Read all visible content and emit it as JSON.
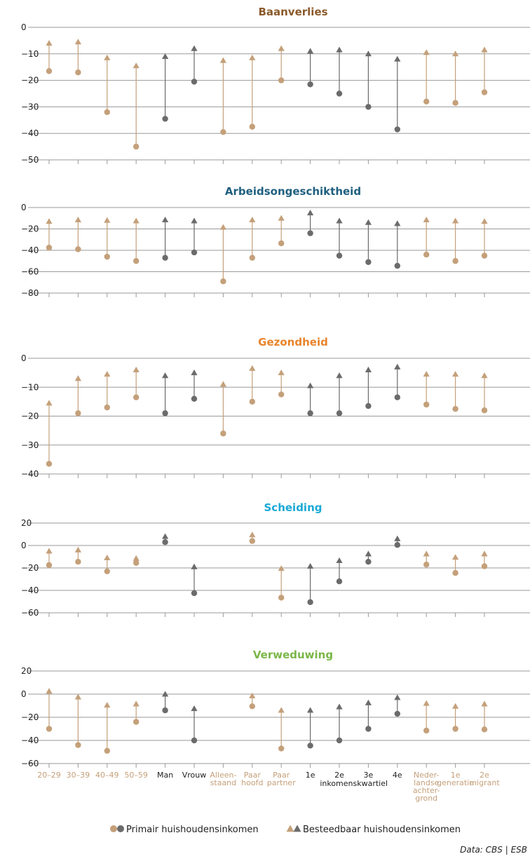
{
  "chart_data": {
    "type": "scatter",
    "categories": [
      {
        "label": [
          "20–29"
        ],
        "group": "age"
      },
      {
        "label": [
          "30–39"
        ],
        "group": "age"
      },
      {
        "label": [
          "40–49"
        ],
        "group": "age"
      },
      {
        "label": [
          "50–59"
        ],
        "group": "age"
      },
      {
        "label": [
          "Man"
        ],
        "group": "gender"
      },
      {
        "label": [
          "Vrouw"
        ],
        "group": "gender"
      },
      {
        "label": [
          "Alleen-",
          "staand"
        ],
        "group": "household"
      },
      {
        "label": [
          "Paar",
          "hoofd"
        ],
        "group": "household"
      },
      {
        "label": [
          "Paar",
          "partner"
        ],
        "group": "household"
      },
      {
        "label": [
          "1e"
        ],
        "group": "quartile"
      },
      {
        "label": [
          "2e"
        ],
        "group": "quartile"
      },
      {
        "label": [
          "3e"
        ],
        "group": "quartile"
      },
      {
        "label": [
          "4e"
        ],
        "group": "quartile"
      },
      {
        "label": [
          "Neder-",
          "landse",
          "achter-",
          "grond"
        ],
        "group": "origin"
      },
      {
        "label": [
          "1e",
          "generatie"
        ],
        "group": "origin"
      },
      {
        "label": [
          "2e",
          "migrant"
        ],
        "group": "origin"
      }
    ],
    "group_label": {
      "text": "inkomenskwartiel",
      "group": "quartile"
    },
    "group_colors": {
      "age": "#c4a07a",
      "gender": "#6b6b6b",
      "household": "#c4a07a",
      "quartile": "#6b6b6b",
      "origin": "#c4a07a"
    },
    "label_colors": {
      "age": "#c4a07a",
      "gender": "#222222",
      "household": "#c4a07a",
      "quartile": "#222222",
      "origin": "#c4a07a"
    },
    "panels": [
      {
        "title": "Baanverlies",
        "title_color": "#8b5a2b",
        "ylim": [
          -50,
          0
        ],
        "yticks": [
          0,
          -10,
          -20,
          -30,
          -40,
          -50
        ],
        "series": [
          {
            "name": "Primair huishoudensinkomen",
            "marker": "circle",
            "values": [
              -16.5,
              -17,
              -32,
              -45,
              -34.5,
              -20.5,
              -39.5,
              -37.5,
              -20,
              -21.5,
              -25,
              -30,
              -38.5,
              -28,
              -28.5,
              -24.5
            ]
          },
          {
            "name": "Besteedbaar huishoudensinkomen",
            "marker": "triangle",
            "values": [
              -6,
              -5.5,
              -11.5,
              -14.5,
              -11,
              -8,
              -12.5,
              -11.5,
              -8,
              -9,
              -8.5,
              -10,
              -12,
              -9.5,
              -10,
              -8.5
            ]
          }
        ]
      },
      {
        "title": "Arbeidsongeschiktheid",
        "title_color": "#1f5f7f",
        "ylim": [
          -80,
          0
        ],
        "yticks": [
          0,
          -20,
          -40,
          -60,
          -80
        ],
        "series": [
          {
            "name": "Primair huishoudensinkomen",
            "marker": "circle",
            "values": [
              -37.5,
              -39,
              -46,
              -50,
              -47,
              -42,
              -69,
              -47,
              -33.5,
              -24,
              -45,
              -51,
              -54.5,
              -44,
              -50,
              -45
            ]
          },
          {
            "name": "Besteedbaar huishoudensinkomen",
            "marker": "triangle",
            "values": [
              -13,
              -11.5,
              -12,
              -12.5,
              -11.5,
              -12.5,
              -18.5,
              -11.5,
              -10,
              -5,
              -12.5,
              -14,
              -15,
              -11.5,
              -12.5,
              -13
            ]
          }
        ]
      },
      {
        "title": "Gezondheid",
        "title_color": "#e8842c",
        "ylim": [
          -40,
          0
        ],
        "yticks": [
          0,
          -10,
          -20,
          -30,
          -40
        ],
        "series": [
          {
            "name": "Primair huishoudensinkomen",
            "marker": "circle",
            "values": [
              -36.5,
              -19,
              -17,
              -13.5,
              -19,
              -14,
              -26,
              -15,
              -12.5,
              -19,
              -19,
              -16.5,
              -13.5,
              -16,
              -17.5,
              -18
            ]
          },
          {
            "name": "Besteedbaar huishoudensinkomen",
            "marker": "triangle",
            "values": [
              -15.5,
              -7,
              -5.5,
              -4,
              -6,
              -5,
              -9,
              -3.5,
              -5,
              -9.5,
              -6,
              -4,
              -3,
              -5.5,
              -5.5,
              -6
            ]
          }
        ]
      },
      {
        "title": "Scheiding",
        "title_color": "#1ba9d6",
        "ylim": [
          -60,
          20
        ],
        "yticks": [
          20,
          0,
          -20,
          -40,
          -60
        ],
        "series": [
          {
            "name": "Primair huishoudensinkomen",
            "marker": "circle",
            "values": [
              -17.5,
              -14.5,
              -23,
              -15.5,
              3,
              -42.5,
              null,
              4,
              -46.5,
              -50.5,
              -32,
              -14.5,
              0.5,
              -17,
              -24.5,
              -18.5
            ]
          },
          {
            "name": "Besteedbaar huishoudensinkomen",
            "marker": "triangle",
            "values": [
              -5,
              -4,
              -11,
              -11.5,
              8,
              -19,
              null,
              9.5,
              -20.5,
              -18.5,
              -13.5,
              -7.5,
              6,
              -7.5,
              -10.5,
              -7.5
            ]
          }
        ]
      },
      {
        "title": "Verweduwing",
        "title_color": "#7ab648",
        "ylim": [
          -60,
          20
        ],
        "yticks": [
          20,
          0,
          -20,
          -40,
          -60
        ],
        "series": [
          {
            "name": "Primair huishoudensinkomen",
            "marker": "circle",
            "values": [
              -30,
              -44,
              -49,
              -24,
              -14,
              -40,
              null,
              -10.5,
              -47,
              -44.5,
              -40,
              -30,
              -17,
              -31.5,
              -30,
              -30.5
            ]
          },
          {
            "name": "Besteedbaar huishoudensinkomen",
            "marker": "triangle",
            "values": [
              2.5,
              -2.5,
              -9.5,
              -8.5,
              0,
              -12.5,
              null,
              -1.5,
              -14,
              -14,
              -11,
              -7.5,
              -3,
              -8,
              -10.5,
              -8.5
            ]
          }
        ]
      }
    ],
    "legend": {
      "position": "bottom",
      "items": [
        {
          "label": "Primair huishoudensinkomen",
          "marker": "circle"
        },
        {
          "label": "Besteedbaar huishoudensinkomen",
          "marker": "triangle"
        }
      ]
    },
    "grid": "horizontal",
    "source": "Data: CBS | ESB"
  }
}
